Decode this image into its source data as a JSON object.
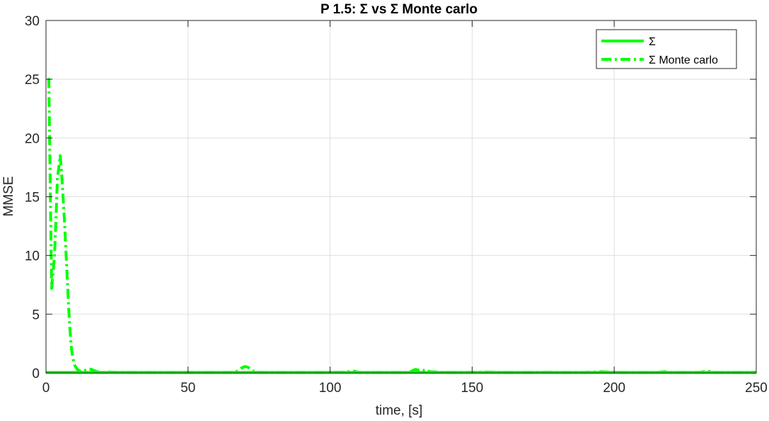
{
  "chart_data": {
    "type": "line",
    "title": "P 1.5: Σ vs Σ Monte carlo",
    "xlabel": "time, [s]",
    "ylabel": "MMSE",
    "xlim": [
      0,
      250
    ],
    "ylim": [
      0,
      30
    ],
    "xticks": [
      "0",
      "50",
      "100",
      "150",
      "200",
      "250"
    ],
    "yticks": [
      "0",
      "5",
      "10",
      "15",
      "20",
      "25",
      "30"
    ],
    "grid": true,
    "legend_position": "top-right",
    "series": [
      {
        "name": "Σ",
        "style": "solid",
        "color": "#00ff00",
        "x": [
          0,
          250
        ],
        "y": [
          0.05,
          0.05
        ]
      },
      {
        "name": "Σ Monte carlo",
        "style": "dash-dot",
        "color": "#00ff00",
        "x": [
          1,
          1.5,
          2,
          2.5,
          3,
          3.5,
          4,
          4.5,
          5,
          5.5,
          6,
          6.5,
          7,
          7.5,
          8,
          8.5,
          9,
          9.5,
          10,
          11,
          12,
          13,
          14,
          15,
          16,
          17,
          18,
          20,
          22,
          25,
          28,
          30,
          35,
          40,
          45,
          50,
          55,
          60,
          65,
          67,
          68,
          69,
          70,
          71,
          72,
          73,
          75,
          80,
          90,
          100,
          105,
          107,
          108,
          110,
          120,
          128,
          129,
          130,
          131,
          132,
          133,
          134,
          135,
          140,
          150,
          155,
          160,
          170,
          175,
          180,
          190,
          195,
          200,
          210,
          215,
          218,
          220,
          225,
          230,
          232,
          233,
          235,
          240,
          250
        ],
        "y": [
          25.1,
          16,
          7.2,
          8.5,
          10.0,
          13.0,
          16.5,
          17.5,
          18.5,
          17.0,
          15.0,
          13.0,
          10.5,
          8.0,
          5.5,
          3.5,
          2.0,
          1.2,
          0.7,
          0.3,
          0.15,
          0.1,
          0.25,
          0.35,
          0.3,
          0.2,
          0.1,
          0.05,
          0.08,
          0.05,
          0.06,
          0.04,
          0.05,
          0.04,
          0.05,
          0.05,
          0.04,
          0.05,
          0.05,
          0.1,
          0.3,
          0.45,
          0.55,
          0.5,
          0.35,
          0.15,
          0.05,
          0.04,
          0.05,
          0.05,
          0.06,
          0.12,
          0.18,
          0.05,
          0.04,
          0.05,
          0.2,
          0.3,
          0.25,
          0.3,
          0.22,
          0.28,
          0.1,
          0.05,
          0.04,
          0.08,
          0.05,
          0.04,
          0.06,
          0.04,
          0.05,
          0.1,
          0.05,
          0.04,
          0.05,
          0.1,
          0.05,
          0.04,
          0.05,
          0.12,
          0.15,
          0.05,
          0.04,
          0.05
        ]
      }
    ]
  }
}
